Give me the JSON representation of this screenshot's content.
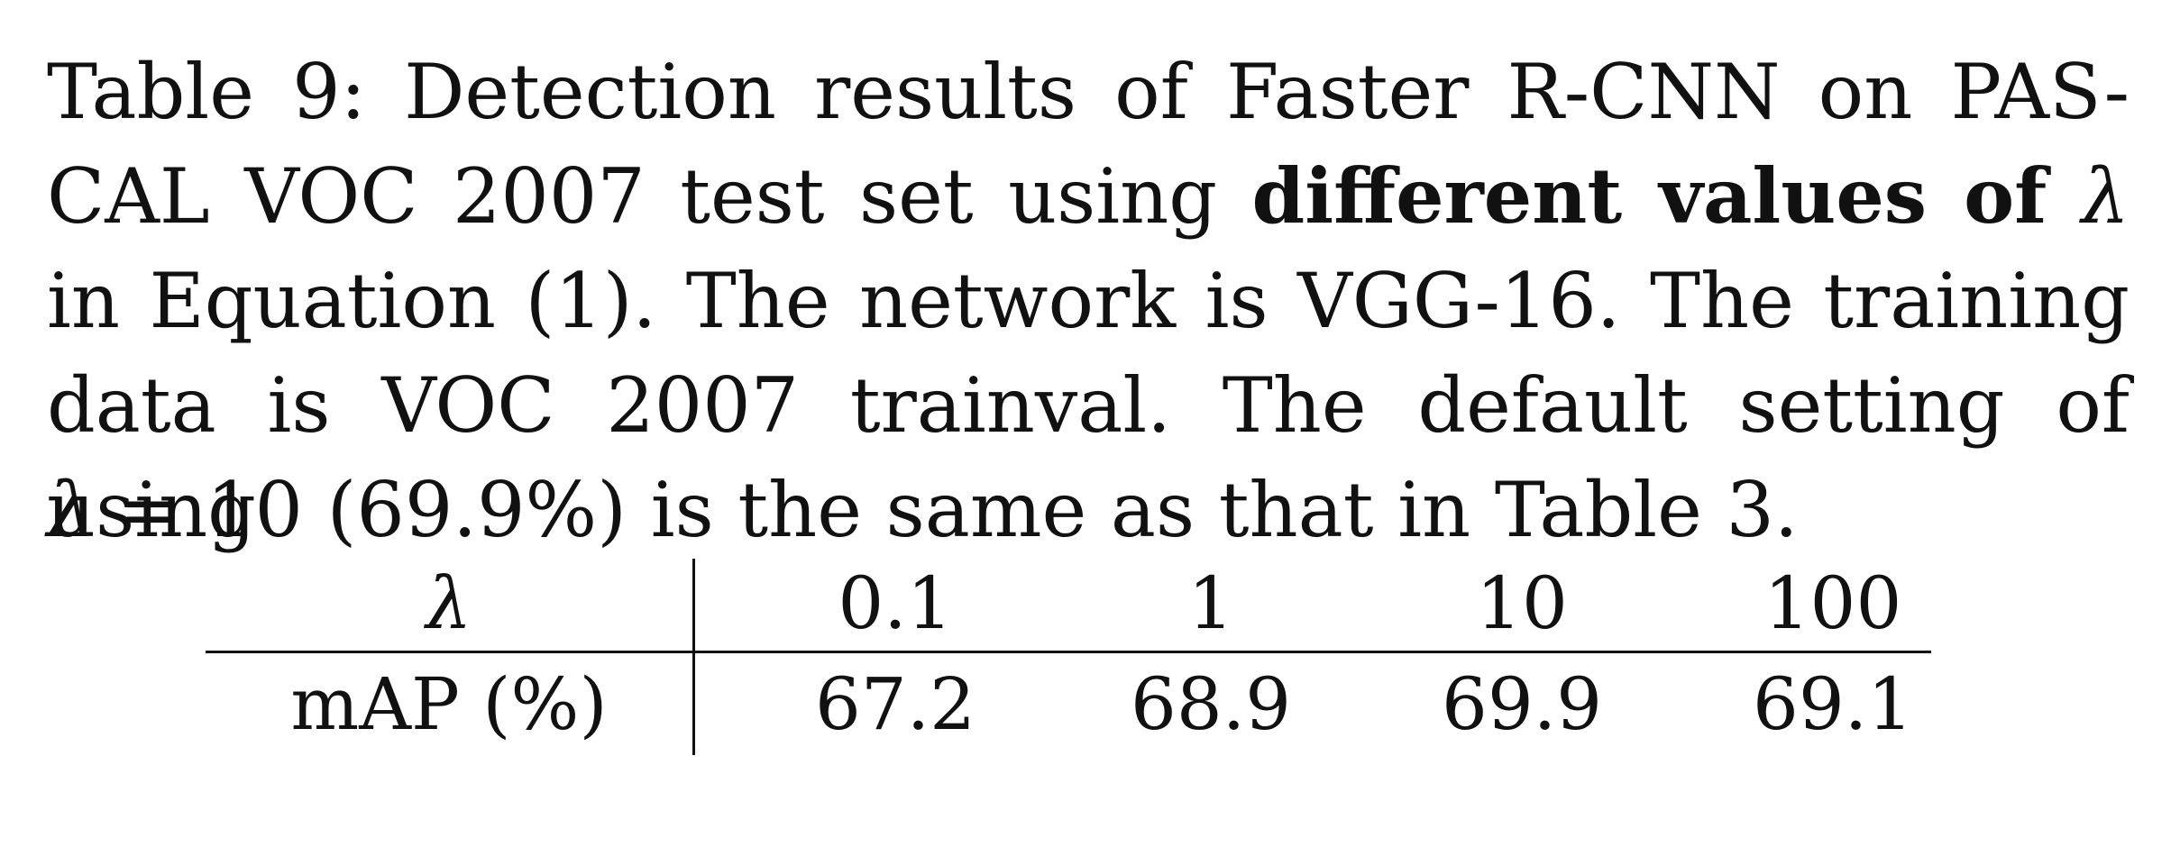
{
  "caption": {
    "line1": "Table 9: Detection results of Faster R-CNN on PAS-",
    "line2_pre": "CAL VOC 2007 test set using",
    "line2_bold": "different values of",
    "line2_symbol": "λ",
    "line3": "in Equation (1). The network is VGG-16. The training",
    "line4": "data is VOC 2007 trainval. The default setting of using",
    "line5_symbol": "λ",
    "line5_rest": "= 10 (69.9%) is the same as that in Table 3."
  },
  "table": {
    "header_label": "λ",
    "columns": [
      "0.1",
      "1",
      "10",
      "100"
    ],
    "row_label": "mAP (%)",
    "values": [
      "67.2",
      "68.9",
      "69.9",
      "69.1"
    ]
  }
}
